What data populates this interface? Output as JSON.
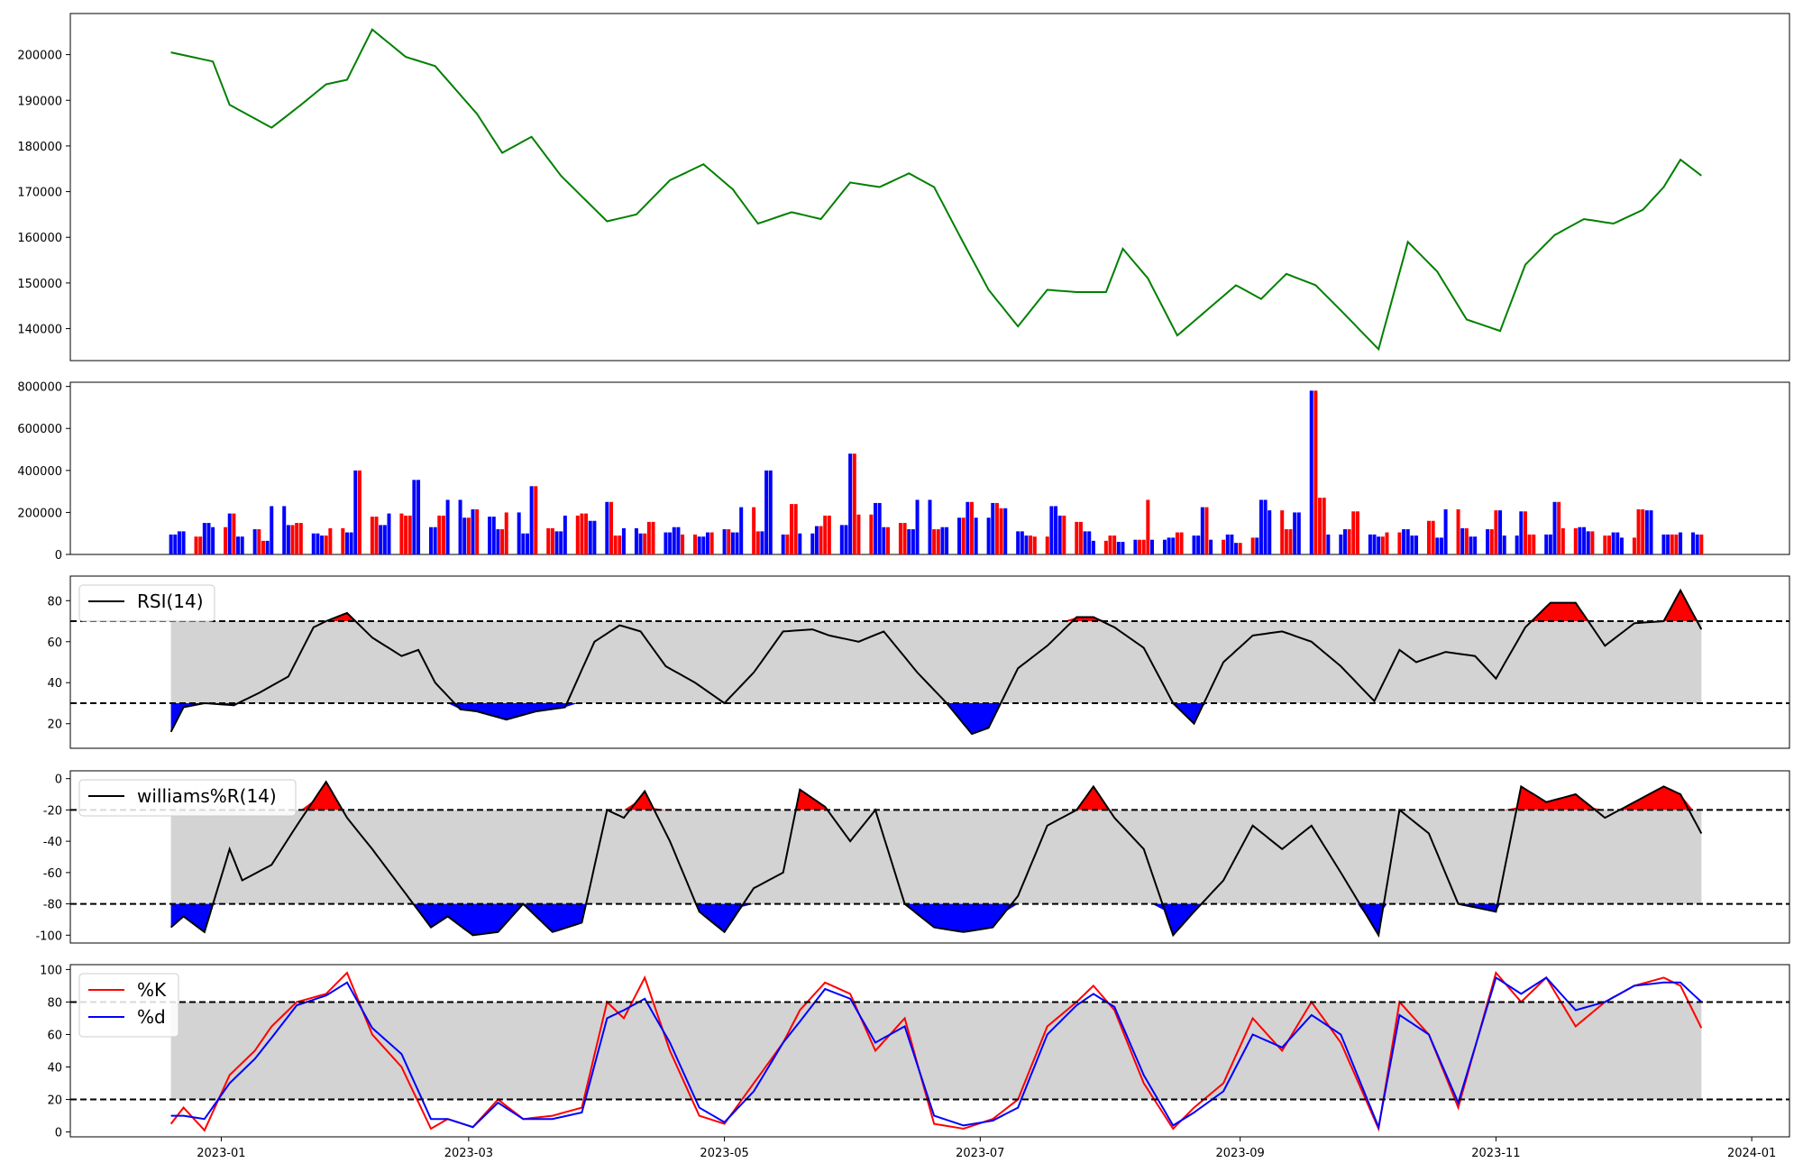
{
  "chart_data": [
    {
      "type": "line",
      "title": "",
      "x": [
        "2022-12-20",
        "2022-12-30",
        "2023-01-03",
        "2023-01-13",
        "2023-01-20",
        "2023-01-26",
        "2023-01-31",
        "2023-02-06",
        "2023-02-14",
        "2023-02-21",
        "2023-03-03",
        "2023-03-09",
        "2023-03-16",
        "2023-03-23",
        "2023-04-03",
        "2023-04-10",
        "2023-04-18",
        "2023-04-26",
        "2023-05-03",
        "2023-05-09",
        "2023-05-17",
        "2023-05-24",
        "2023-05-31",
        "2023-06-07",
        "2023-06-14",
        "2023-06-20",
        "2023-06-26",
        "2023-07-03",
        "2023-07-10",
        "2023-07-17",
        "2023-07-24",
        "2023-07-31",
        "2023-08-04",
        "2023-08-10",
        "2023-08-17",
        "2023-08-24",
        "2023-08-31",
        "2023-09-06",
        "2023-09-12",
        "2023-09-19",
        "2023-09-25",
        "2023-10-04",
        "2023-10-11",
        "2023-10-18",
        "2023-10-25",
        "2023-11-02",
        "2023-11-08",
        "2023-11-15",
        "2023-11-22",
        "2023-11-29",
        "2023-12-06",
        "2023-12-11",
        "2023-12-15",
        "2023-12-20"
      ],
      "series": [
        {
          "values": [
            200500,
            198500,
            189000,
            184000,
            189000,
            193500,
            194500,
            205500,
            199500,
            197500,
            187000,
            178500,
            182000,
            173500,
            163500,
            165000,
            172500,
            176000,
            170500,
            163000,
            165500,
            164000,
            172000,
            171000,
            174000,
            171000,
            160500,
            148500,
            140500,
            148500,
            148000,
            148000,
            157500,
            151000,
            138500,
            144000,
            149500,
            146500,
            152000,
            149500,
            144000,
            135500,
            159000,
            152500,
            142000,
            139500,
            154000,
            160500,
            164000,
            163000,
            166000,
            171000,
            177000,
            173500
          ]
        }
      ],
      "ylim": [
        133000,
        209000
      ],
      "yticks": [
        140000,
        150000,
        160000,
        170000,
        180000,
        190000,
        200000
      ],
      "line_color": "#008000"
    },
    {
      "type": "bar",
      "categories_start": "2022-12-20",
      "categories_end": "2023-12-20",
      "values_hint": "daily volume, colored by direction",
      "volume_seed": [
        95000,
        110000,
        85000,
        150000,
        130000,
        195000,
        85000,
        120000,
        65000,
        230000,
        140000,
        150000,
        100000,
        90000,
        125000,
        105000,
        400000,
        180000,
        140000,
        195000,
        185000,
        355000,
        130000,
        185000,
        260000,
        175000,
        215000,
        180000,
        120000,
        200000,
        100000,
        325000,
        125000,
        110000,
        185000,
        195000,
        160000,
        250000,
        90000,
        125000,
        100000,
        155000,
        105000,
        130000,
        95000,
        85000,
        105000,
        120000,
        105000,
        225000,
        110000,
        400000,
        95000,
        240000,
        100000,
        135000,
        185000,
        140000,
        480000,
        190000,
        245000,
        130000,
        150000,
        120000,
        260000,
        120000,
        130000,
        175000,
        250000,
        175000,
        245000,
        220000,
        110000,
        90000,
        85000,
        230000,
        185000,
        155000,
        110000,
        65000,
        90000,
        60000,
        70000,
        260000,
        70000,
        80000,
        105000,
        90000,
        225000,
        70000,
        95000,
        55000,
        80000,
        260000,
        210000,
        120000,
        200000,
        780000,
        270000,
        95000,
        120000,
        205000,
        95000,
        85000,
        105000,
        120000,
        90000,
        160000,
        80000,
        215000,
        125000,
        85000,
        120000,
        210000,
        90000,
        205000,
        95000,
        95000,
        250000,
        125000,
        130000,
        110000,
        90000,
        105000,
        80000,
        215000,
        210000,
        95000,
        95000,
        105000,
        95000
      ],
      "ylim": [
        0,
        820000
      ],
      "yticks": [
        0,
        200000,
        400000,
        600000,
        800000
      ],
      "colors": {
        "up": "#ff0000",
        "down": "#0000ff",
        "flat": "#000000"
      }
    },
    {
      "type": "line",
      "legend": [
        "RSI(14)"
      ],
      "legend_position": "top-left",
      "x_dates": [
        "2022-12-20",
        "2022-12-23",
        "2022-12-28",
        "2023-01-04",
        "2023-01-10",
        "2023-01-17",
        "2023-01-23",
        "2023-01-26",
        "2023-01-31",
        "2023-02-06",
        "2023-02-13",
        "2023-02-17",
        "2023-02-21",
        "2023-02-27",
        "2023-03-03",
        "2023-03-10",
        "2023-03-17",
        "2023-03-24",
        "2023-03-31",
        "2023-04-06",
        "2023-04-11",
        "2023-04-17",
        "2023-04-24",
        "2023-05-01",
        "2023-05-08",
        "2023-05-15",
        "2023-05-22",
        "2023-05-26",
        "2023-06-02",
        "2023-06-08",
        "2023-06-16",
        "2023-06-23",
        "2023-06-29",
        "2023-07-03",
        "2023-07-10",
        "2023-07-17",
        "2023-07-24",
        "2023-07-28",
        "2023-08-02",
        "2023-08-09",
        "2023-08-16",
        "2023-08-21",
        "2023-08-28",
        "2023-09-04",
        "2023-09-11",
        "2023-09-18",
        "2023-09-25",
        "2023-10-03",
        "2023-10-09",
        "2023-10-13",
        "2023-10-20",
        "2023-10-27",
        "2023-11-01",
        "2023-11-08",
        "2023-11-14",
        "2023-11-20",
        "2023-11-27",
        "2023-12-04",
        "2023-12-11",
        "2023-12-15",
        "2023-12-20"
      ],
      "series": [
        {
          "name": "RSI(14)",
          "values": [
            16,
            28,
            30,
            29,
            35,
            43,
            67,
            70,
            74,
            62,
            53,
            56,
            40,
            27,
            26,
            22,
            26,
            28,
            60,
            68,
            65,
            48,
            40,
            30,
            45,
            65,
            66,
            63,
            60,
            65,
            45,
            30,
            15,
            18,
            47,
            58,
            72,
            72,
            67,
            57,
            30,
            20,
            50,
            63,
            65,
            60,
            48,
            31,
            56,
            50,
            55,
            53,
            42,
            67,
            79,
            79,
            58,
            69,
            70,
            85,
            66
          ]
        }
      ],
      "ylim": [
        8,
        92
      ],
      "yticks": [
        20,
        40,
        60,
        80
      ],
      "thresholds": [
        30,
        70
      ]
    },
    {
      "type": "line",
      "legend": [
        "williams%R(14)"
      ],
      "legend_position": "top-left",
      "x_dates": [
        "2022-12-20",
        "2022-12-23",
        "2022-12-28",
        "2023-01-03",
        "2023-01-06",
        "2023-01-13",
        "2023-01-19",
        "2023-01-26",
        "2023-01-31",
        "2023-02-06",
        "2023-02-13",
        "2023-02-20",
        "2023-02-24",
        "2023-03-02",
        "2023-03-08",
        "2023-03-14",
        "2023-03-21",
        "2023-03-28",
        "2023-04-03",
        "2023-04-07",
        "2023-04-12",
        "2023-04-18",
        "2023-04-25",
        "2023-05-01",
        "2023-05-08",
        "2023-05-15",
        "2023-05-19",
        "2023-05-25",
        "2023-05-31",
        "2023-06-06",
        "2023-06-13",
        "2023-06-20",
        "2023-06-27",
        "2023-07-04",
        "2023-07-10",
        "2023-07-17",
        "2023-07-24",
        "2023-07-28",
        "2023-08-02",
        "2023-08-09",
        "2023-08-16",
        "2023-08-21",
        "2023-08-28",
        "2023-09-04",
        "2023-09-11",
        "2023-09-18",
        "2023-09-25",
        "2023-10-04",
        "2023-10-09",
        "2023-10-16",
        "2023-10-23",
        "2023-11-01",
        "2023-11-07",
        "2023-11-13",
        "2023-11-20",
        "2023-11-27",
        "2023-12-04",
        "2023-12-11",
        "2023-12-15",
        "2023-12-20"
      ],
      "series": [
        {
          "name": "williams%R(14)",
          "values": [
            -95,
            -88,
            -98,
            -45,
            -65,
            -55,
            -30,
            -2,
            -25,
            -45,
            -70,
            -95,
            -88,
            -100,
            -98,
            -80,
            -98,
            -92,
            -20,
            -25,
            -8,
            -40,
            -85,
            -98,
            -70,
            -60,
            -7,
            -18,
            -40,
            -20,
            -80,
            -95,
            -98,
            -95,
            -75,
            -30,
            -20,
            -5,
            -25,
            -45,
            -100,
            -85,
            -65,
            -30,
            -45,
            -30,
            -60,
            -100,
            -20,
            -35,
            -80,
            -85,
            -5,
            -15,
            -10,
            -25,
            -15,
            -5,
            -10,
            -35
          ]
        }
      ],
      "ylim": [
        -105,
        5
      ],
      "yticks": [
        0,
        -20,
        -40,
        -60,
        -80,
        -100
      ],
      "thresholds": [
        -20,
        -80
      ]
    },
    {
      "type": "line",
      "legend": [
        "%K",
        "%d"
      ],
      "legend_position": "top-left",
      "x_dates": [
        "2022-12-20",
        "2022-12-23",
        "2022-12-28",
        "2023-01-03",
        "2023-01-09",
        "2023-01-13",
        "2023-01-19",
        "2023-01-26",
        "2023-01-31",
        "2023-02-06",
        "2023-02-13",
        "2023-02-20",
        "2023-02-24",
        "2023-03-02",
        "2023-03-08",
        "2023-03-14",
        "2023-03-21",
        "2023-03-28",
        "2023-04-03",
        "2023-04-07",
        "2023-04-12",
        "2023-04-18",
        "2023-04-25",
        "2023-05-01",
        "2023-05-08",
        "2023-05-15",
        "2023-05-19",
        "2023-05-25",
        "2023-05-31",
        "2023-06-06",
        "2023-06-13",
        "2023-06-20",
        "2023-06-27",
        "2023-07-04",
        "2023-07-10",
        "2023-07-17",
        "2023-07-24",
        "2023-07-28",
        "2023-08-02",
        "2023-08-09",
        "2023-08-16",
        "2023-08-21",
        "2023-08-28",
        "2023-09-04",
        "2023-09-11",
        "2023-09-18",
        "2023-09-25",
        "2023-10-04",
        "2023-10-09",
        "2023-10-16",
        "2023-10-23",
        "2023-11-01",
        "2023-11-07",
        "2023-11-13",
        "2023-11-20",
        "2023-11-27",
        "2023-12-04",
        "2023-12-11",
        "2023-12-15",
        "2023-12-20"
      ],
      "series": [
        {
          "name": "%K",
          "color": "#ff0000",
          "values": [
            5,
            15,
            1,
            35,
            50,
            65,
            80,
            85,
            98,
            60,
            40,
            2,
            8,
            3,
            20,
            8,
            10,
            15,
            80,
            70,
            95,
            50,
            10,
            5,
            30,
            55,
            75,
            92,
            85,
            50,
            70,
            5,
            2,
            8,
            20,
            65,
            80,
            90,
            75,
            30,
            2,
            15,
            30,
            70,
            50,
            80,
            55,
            2,
            80,
            60,
            15,
            98,
            80,
            95,
            65,
            80,
            90,
            95,
            90,
            64
          ]
        },
        {
          "name": "%d",
          "color": "#0000ff",
          "values": [
            10,
            10,
            8,
            30,
            45,
            58,
            78,
            84,
            92,
            64,
            48,
            8,
            8,
            3,
            18,
            8,
            8,
            12,
            70,
            75,
            82,
            55,
            15,
            6,
            25,
            55,
            68,
            88,
            82,
            55,
            65,
            10,
            4,
            7,
            15,
            60,
            78,
            85,
            77,
            35,
            4,
            12,
            25,
            60,
            52,
            72,
            60,
            3,
            72,
            60,
            18,
            95,
            85,
            95,
            75,
            80,
            90,
            92,
            92,
            80
          ]
        }
      ],
      "ylim": [
        -3,
        103
      ],
      "yticks": [
        0,
        20,
        40,
        60,
        80,
        100
      ],
      "thresholds": [
        20,
        80
      ],
      "xticks": [
        "2023-01",
        "2023-03",
        "2023-05",
        "2023-07",
        "2023-09",
        "2023-11",
        "2024-01"
      ]
    }
  ]
}
